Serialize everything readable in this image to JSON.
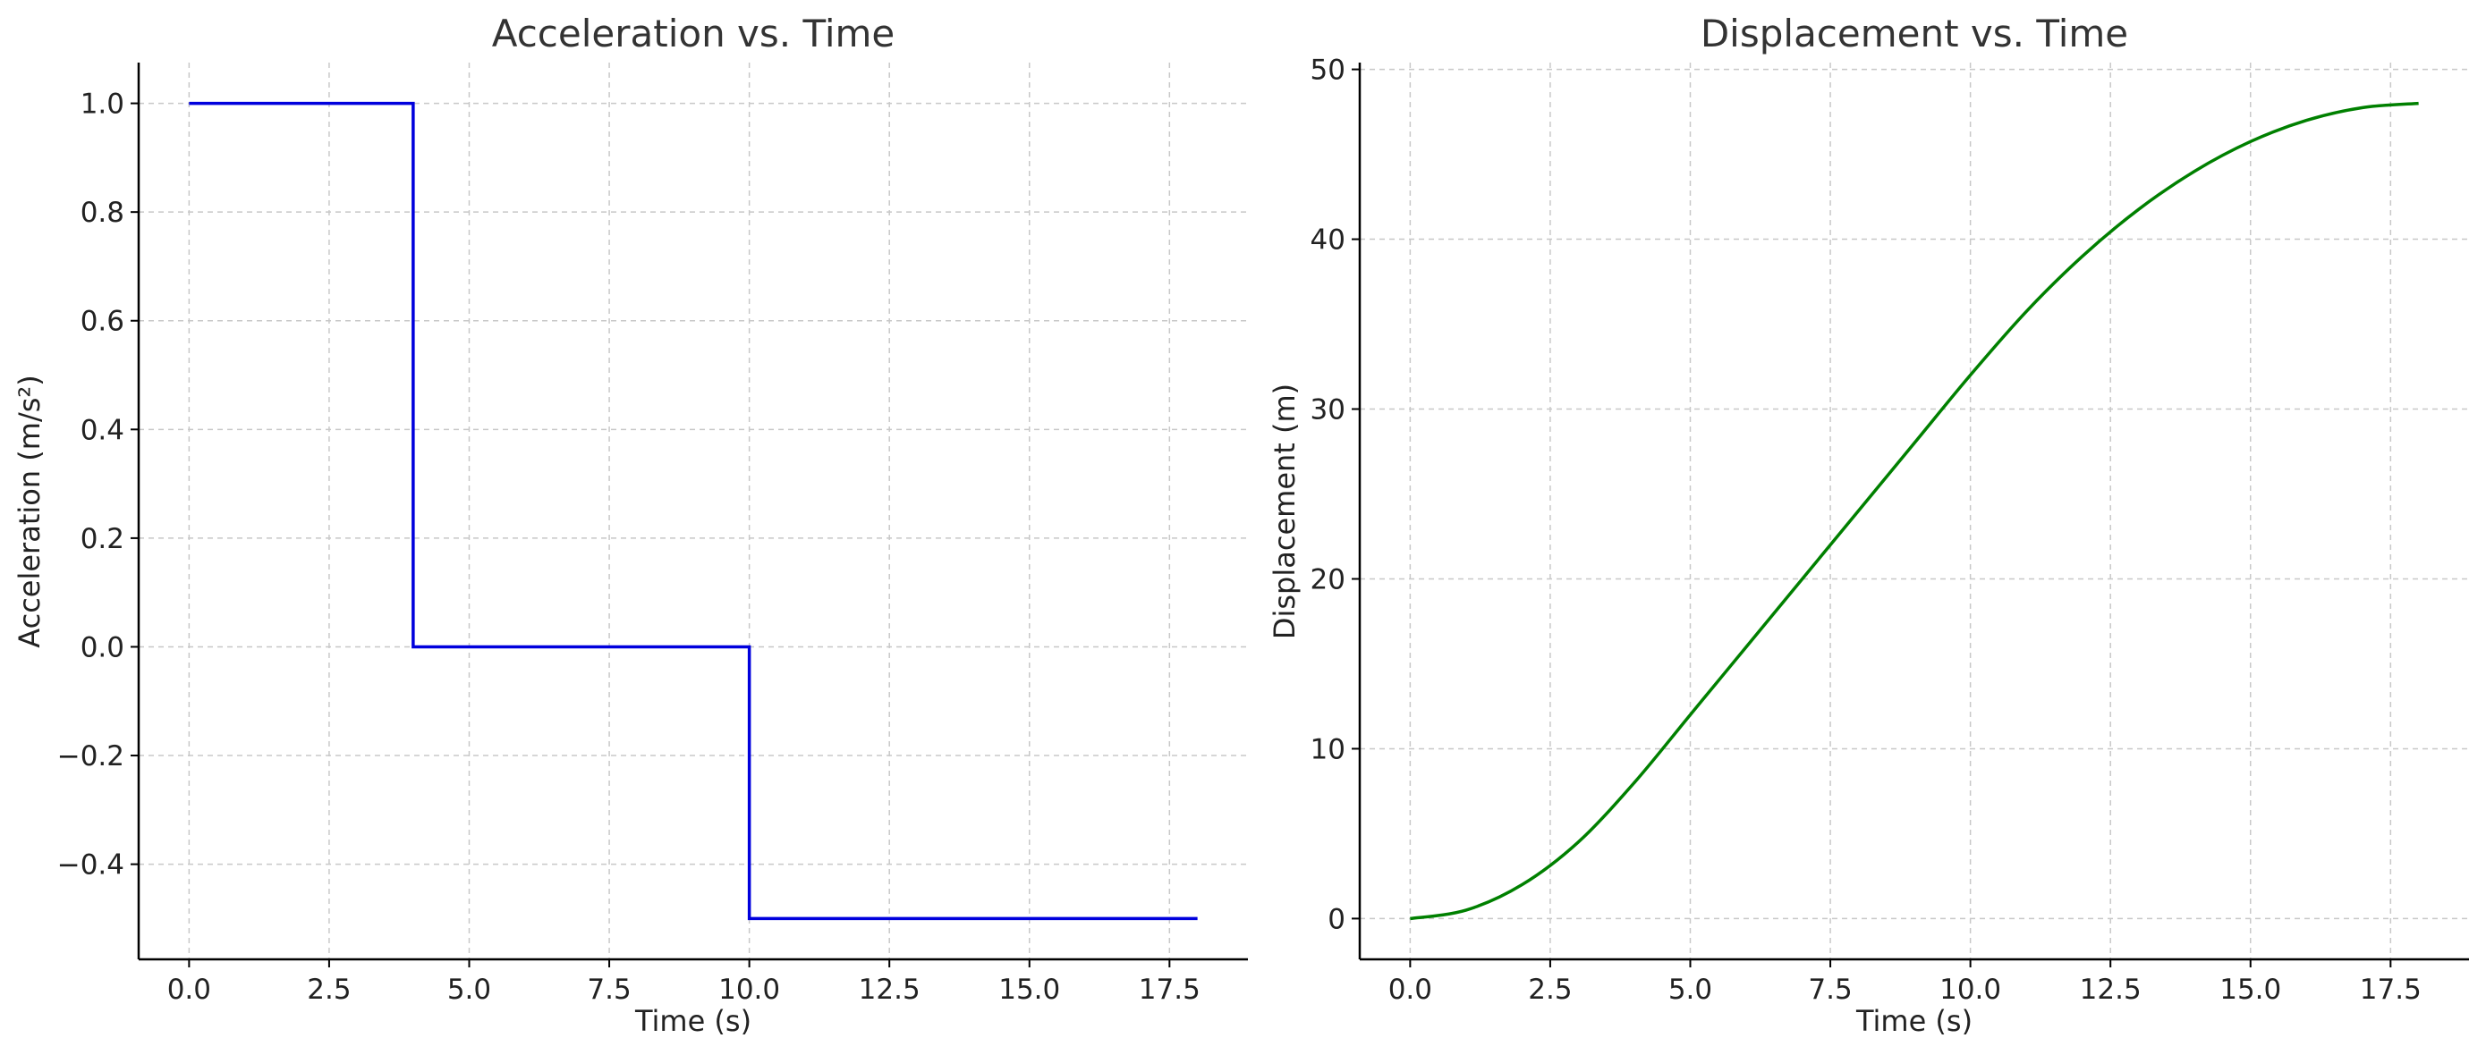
{
  "chart_data": [
    {
      "type": "line",
      "title": "Acceleration vs. Time",
      "xlabel": "Time (s)",
      "ylabel": "Acceleration (m/s²)",
      "xlim": [
        -0.9,
        18.9
      ],
      "ylim": [
        -0.575,
        1.075
      ],
      "xticks": [
        0,
        2.5,
        5,
        7.5,
        10,
        12.5,
        15,
        17.5
      ],
      "xtick_labels": [
        "0.0",
        "2.5",
        "5.0",
        "7.5",
        "10.0",
        "12.5",
        "15.0",
        "17.5"
      ],
      "yticks": [
        -0.4,
        -0.2,
        0,
        0.2,
        0.4,
        0.6,
        0.8,
        1.0
      ],
      "ytick_labels": [
        "−0.4",
        "−0.2",
        "0.0",
        "0.2",
        "0.4",
        "0.6",
        "0.8",
        "1.0"
      ],
      "grid": true,
      "series": [
        {
          "color": "#0000dd",
          "step": true,
          "x": [
            0,
            4,
            4,
            10,
            10,
            18
          ],
          "y": [
            1.0,
            1.0,
            0.0,
            0.0,
            -0.5,
            -0.5
          ]
        }
      ]
    },
    {
      "type": "line",
      "title": "Displacement vs. Time",
      "xlabel": "Time (s)",
      "ylabel": "Displacement (m)",
      "xlim": [
        -0.9,
        18.9
      ],
      "ylim": [
        -2.4,
        50.4
      ],
      "xticks": [
        0,
        2.5,
        5,
        7.5,
        10,
        12.5,
        15,
        17.5
      ],
      "xtick_labels": [
        "0.0",
        "2.5",
        "5.0",
        "7.5",
        "10.0",
        "12.5",
        "15.0",
        "17.5"
      ],
      "yticks": [
        0,
        10,
        20,
        30,
        40,
        50
      ],
      "ytick_labels": [
        "0",
        "10",
        "20",
        "30",
        "40",
        "50"
      ],
      "grid": true,
      "series": [
        {
          "color": "#008000",
          "step": false,
          "x": [
            0,
            1,
            2,
            3,
            4,
            5,
            6,
            7,
            8,
            9,
            10,
            11,
            12,
            13,
            14,
            15,
            16,
            17,
            18
          ],
          "y": [
            0,
            0.5,
            2,
            4.5,
            8,
            12,
            16,
            20,
            24,
            28,
            32,
            35.75,
            39,
            41.75,
            44,
            45.75,
            47,
            47.75,
            48
          ]
        }
      ]
    }
  ]
}
